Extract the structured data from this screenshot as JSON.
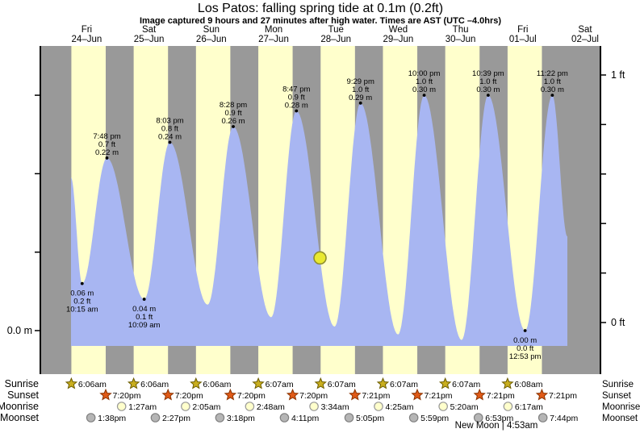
{
  "title": "Los Patos: falling  spring tide at 0.1m (0.2ft)",
  "subtitle": "Image captured 9 hours and 27 minutes after high water. Times are AST (UTC –4.0hrs)",
  "axis": {
    "left_zero_label": "0.0 m",
    "right_top_label": "1 ft",
    "right_bottom_label": "0 ft"
  },
  "colors": {
    "day_band": "#ffffcc",
    "night_band": "#999999",
    "tide_area": "#a8b6f2",
    "date_label": "#ff4747",
    "annotation": "#000000",
    "sunrise_icon": "#c9ae1e",
    "sunrise_icon_edge": "#6b5c00",
    "sunset_icon": "#e05a17",
    "sunset_icon_edge": "#8a3300",
    "moonrise_icon": "#ffffcc",
    "moonrise_icon_edge": "#999999",
    "moonset_icon": "#b5b5b5",
    "moonset_icon_edge": "#808080",
    "current_marker": "#e9e931",
    "current_marker_edge": "#8f8f2f"
  },
  "chart_data": {
    "type": "area",
    "title": "Los Patos tide height over time",
    "xlabel": "date",
    "ylabel_left": "meters",
    "ylabel_right": "feet",
    "ylim_m": [
      -0.03,
      0.37
    ],
    "x_axis": {
      "days": [
        {
          "name": "Fri",
          "date": "24–Jun"
        },
        {
          "name": "Sat",
          "date": "25–Jun"
        },
        {
          "name": "Sun",
          "date": "26–Jun"
        },
        {
          "name": "Mon",
          "date": "27–Jun"
        },
        {
          "name": "Tue",
          "date": "28–Jun"
        },
        {
          "name": "Wed",
          "date": "29–Jun"
        },
        {
          "name": "Thu",
          "date": "30–Jun"
        },
        {
          "name": "Fri",
          "date": "01–Jul"
        },
        {
          "name": "Sat",
          "date": "02–Jul"
        }
      ]
    },
    "y_axis": {
      "meters_ticks": [
        0,
        0.1,
        0.2,
        0.3
      ],
      "feet_ticks": [
        0,
        0.2,
        0.4,
        0.6,
        0.8,
        1.0
      ]
    },
    "tide_extremes": [
      {
        "t": 0.2487,
        "m": 0.195,
        "type": "edge"
      },
      {
        "t": 0.4271,
        "m": 0.06,
        "type": "low",
        "lines": [
          "0.06 m",
          "0.2 ft",
          "10:15 am"
        ]
      },
      {
        "t": 0.825,
        "m": 0.22,
        "type": "high",
        "lines": [
          "7:48 pm",
          "0.7 ft",
          "0.22 m"
        ]
      },
      {
        "t": 1.4229,
        "m": 0.04,
        "type": "low",
        "lines": [
          "0.04 m",
          "0.1 ft",
          "10:09 am"
        ]
      },
      {
        "t": 1.8354,
        "m": 0.24,
        "type": "high",
        "lines": [
          "8:03 pm",
          "0.8 ft",
          "0.24 m"
        ]
      },
      {
        "t": 2.4417,
        "m": 0.033,
        "type": "low"
      },
      {
        "t": 2.8528,
        "m": 0.26,
        "type": "high",
        "lines": [
          "8:28 pm",
          "0.9 ft",
          "0.26 m"
        ]
      },
      {
        "t": 3.4604,
        "m": 0.017,
        "type": "low"
      },
      {
        "t": 3.866,
        "m": 0.28,
        "type": "high",
        "lines": [
          "8:47 pm",
          "0.9 ft",
          "0.28 m"
        ]
      },
      {
        "t": 4.4792,
        "m": 0.005,
        "type": "low"
      },
      {
        "t": 4.8951,
        "m": 0.29,
        "type": "high",
        "lines": [
          "9:29 pm",
          "1.0 ft",
          "0.29 m"
        ]
      },
      {
        "t": 5.4979,
        "m": -0.005,
        "type": "low"
      },
      {
        "t": 5.9167,
        "m": 0.3,
        "type": "high",
        "lines": [
          "10:00 pm",
          "1.0 ft",
          "0.30 m"
        ]
      },
      {
        "t": 6.5174,
        "m": -0.012,
        "type": "low"
      },
      {
        "t": 6.9438,
        "m": 0.3,
        "type": "high",
        "lines": [
          "10:39 pm",
          "1.0 ft",
          "0.30 m"
        ]
      },
      {
        "t": 7.5368,
        "m": 0.0,
        "type": "low",
        "lines": [
          "0.00 m",
          "0.0 ft",
          "12:53 pm"
        ]
      },
      {
        "t": 7.9736,
        "m": 0.3,
        "type": "high",
        "lines": [
          "11:22 pm",
          "1.0 ft",
          "0.30 m"
        ]
      },
      {
        "t": 8.215,
        "m": 0.12,
        "type": "edge"
      }
    ],
    "current_marker": {
      "t": 4.245,
      "m": 0.1
    }
  },
  "sun_moon": {
    "rows": [
      "Sunrise",
      "Sunset",
      "Moonrise",
      "Moonset"
    ],
    "sunrise": [
      {
        "day": 0,
        "time": "6:06am"
      },
      {
        "day": 1,
        "time": "6:06am"
      },
      {
        "day": 2,
        "time": "6:06am"
      },
      {
        "day": 3,
        "time": "6:07am"
      },
      {
        "day": 4,
        "time": "6:07am"
      },
      {
        "day": 5,
        "time": "6:07am"
      },
      {
        "day": 6,
        "time": "6:07am"
      },
      {
        "day": 7,
        "time": "6:08am"
      }
    ],
    "sunset": [
      {
        "day": 0,
        "time": "7:20pm"
      },
      {
        "day": 1,
        "time": "7:20pm"
      },
      {
        "day": 2,
        "time": "7:20pm"
      },
      {
        "day": 3,
        "time": "7:20pm"
      },
      {
        "day": 4,
        "time": "7:21pm"
      },
      {
        "day": 5,
        "time": "7:21pm"
      },
      {
        "day": 6,
        "time": "7:21pm"
      },
      {
        "day": 7,
        "time": "7:21pm"
      }
    ],
    "moonrise": [
      {
        "day": 1,
        "time": "1:27am"
      },
      {
        "day": 2,
        "time": "2:05am"
      },
      {
        "day": 3,
        "time": "2:48am"
      },
      {
        "day": 4,
        "time": "3:34am"
      },
      {
        "day": 5,
        "time": "4:25am"
      },
      {
        "day": 6,
        "time": "5:20am"
      },
      {
        "day": 7,
        "time": "6:17am"
      }
    ],
    "moonset": [
      {
        "day": 0,
        "time": "1:38pm"
      },
      {
        "day": 1,
        "time": "2:27pm"
      },
      {
        "day": 2,
        "time": "3:18pm"
      },
      {
        "day": 3,
        "time": "4:11pm"
      },
      {
        "day": 4,
        "time": "5:05pm"
      },
      {
        "day": 5,
        "time": "5:59pm"
      },
      {
        "day": 6,
        "time": "6:53pm"
      },
      {
        "day": 7,
        "time": "7:44pm"
      }
    ]
  },
  "footnote": "New Moon | 4:53am"
}
